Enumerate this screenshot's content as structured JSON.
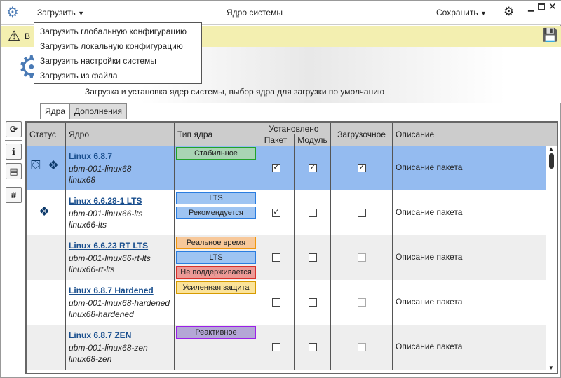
{
  "titlebar": {
    "load_label": "Загрузить",
    "title": "Ядро системы",
    "save_label": "Сохранить"
  },
  "load_menu": [
    "Загрузить глобальную конфигурацию",
    "Загрузить локальную конфигурацию",
    "Загрузить настройки системы",
    "Загрузить из файла"
  ],
  "banner": {
    "text": "В"
  },
  "subtitle": "Загрузка и установка ядер системы, выбор ядра для загрузки по умолчанию",
  "tabs": [
    {
      "label": "Ядра",
      "active": true
    },
    {
      "label": "Дополнения",
      "active": false
    }
  ],
  "table": {
    "headers": {
      "status": "Статус",
      "kernel": "Ядро",
      "type": "Тип ядра",
      "installed": "Установлено",
      "package": "Пакет",
      "module": "Модуль",
      "boot": "Загрузочное",
      "description": "Описание"
    },
    "rows": [
      {
        "name": "Linux 6.8.7",
        "pkg": "ubm-001-linux68",
        "module": "linux68",
        "status_icons": [
          "cubes-icon",
          "dropbox-icon"
        ],
        "badges": [
          {
            "label": "Стабильное",
            "bg": "#a9d4b4",
            "border": "#22a22a"
          }
        ],
        "package": true,
        "module_installed": true,
        "boot": true,
        "boot_disabled": false,
        "description": "Описание пакета",
        "selected": true
      },
      {
        "name": "Linux 6.6.28-1 LTS",
        "pkg": "ubm-001-linux66-lts",
        "module": "linux66-lts",
        "status_icons": [
          "dropbox-icon"
        ],
        "badges": [
          {
            "label": "LTS",
            "bg": "#9ec4f2",
            "border": "#2a7de0"
          },
          {
            "label": "Рекомендуется",
            "bg": "#9ec4f2",
            "border": "#2a7de0"
          }
        ],
        "package": true,
        "module_installed": false,
        "boot": false,
        "boot_disabled": false,
        "description": "Описание пакета",
        "selected": false
      },
      {
        "name": "Linux 6.6.23 RT LTS",
        "pkg": "ubm-001-linux66-rt-lts",
        "module": "linux66-rt-lts",
        "status_icons": [],
        "badges": [
          {
            "label": "Реальное время",
            "bg": "#f7c89a",
            "border": "#f0960f"
          },
          {
            "label": "LTS",
            "bg": "#9ec4f2",
            "border": "#2a7de0"
          },
          {
            "label": "Не поддерживается",
            "bg": "#ec9a96",
            "border": "#d9302a"
          }
        ],
        "package": false,
        "module_installed": false,
        "boot": false,
        "boot_disabled": true,
        "description": "Описание пакета",
        "selected": false
      },
      {
        "name": "Linux 6.8.7 Hardened",
        "pkg": "ubm-001-linux68-hardened",
        "module": "linux68-hardened",
        "status_icons": [],
        "badges": [
          {
            "label": "Усиленная защита",
            "bg": "#fbe39a",
            "border": "#d79b00"
          }
        ],
        "package": false,
        "module_installed": false,
        "boot": false,
        "boot_disabled": true,
        "description": "Описание пакета",
        "selected": false
      },
      {
        "name": "Linux 6.8.7 ZEN",
        "pkg": "ubm-001-linux68-zen",
        "module": "linux68-zen",
        "status_icons": [],
        "badges": [
          {
            "label": "Реактивное",
            "bg": "#b4a7d6",
            "border": "#9b1fe8"
          }
        ],
        "package": false,
        "module_installed": false,
        "boot": false,
        "boot_disabled": true,
        "description": "Описание пакета",
        "selected": false
      }
    ]
  },
  "colors": {
    "selected_row": "#94bbf0",
    "alt_row": "#eeeeee",
    "banner": "#f3efb0",
    "link": "#1a4f8e",
    "gear": "#4a7ab5"
  }
}
